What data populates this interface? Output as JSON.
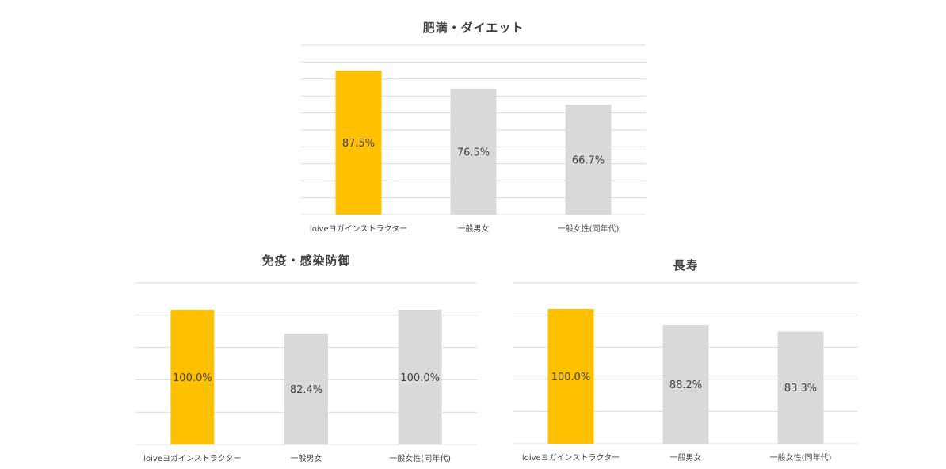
{
  "colors": {
    "highlight": "#ffc000",
    "neutral": "#d9d9d9",
    "text": "#404040",
    "grid": "#d9d9d9"
  },
  "chart_data": [
    {
      "type": "bar",
      "title": "肥満・ダイエット",
      "categories": [
        "loiveヨガインストラクター",
        "一般男女",
        "一般女性(同年代)"
      ],
      "values": [
        87.5,
        76.5,
        66.7
      ],
      "labels": [
        "87.5%",
        "76.5%",
        "66.7%"
      ],
      "ylim": [
        0,
        100
      ],
      "grid": true,
      "gridlines": 10
    },
    {
      "type": "bar",
      "title": "免疫・感染防御",
      "categories": [
        "loiveヨガインストラクター",
        "一般男女",
        "一般女性(同年代)"
      ],
      "values": [
        100.0,
        82.4,
        100.0
      ],
      "labels": [
        "100.0%",
        "82.4%",
        "100.0%"
      ],
      "ylim": [
        0,
        100
      ],
      "grid": true,
      "gridlines": 5
    },
    {
      "type": "bar",
      "title": "長寿",
      "categories": [
        "loiveヨガインストラクター",
        "一般男女",
        "一般女性(同年代)"
      ],
      "values": [
        100.0,
        88.2,
        83.3
      ],
      "labels": [
        "100.0%",
        "88.2%",
        "83.3%"
      ],
      "ylim": [
        0,
        100
      ],
      "grid": true,
      "gridlines": 5
    }
  ]
}
